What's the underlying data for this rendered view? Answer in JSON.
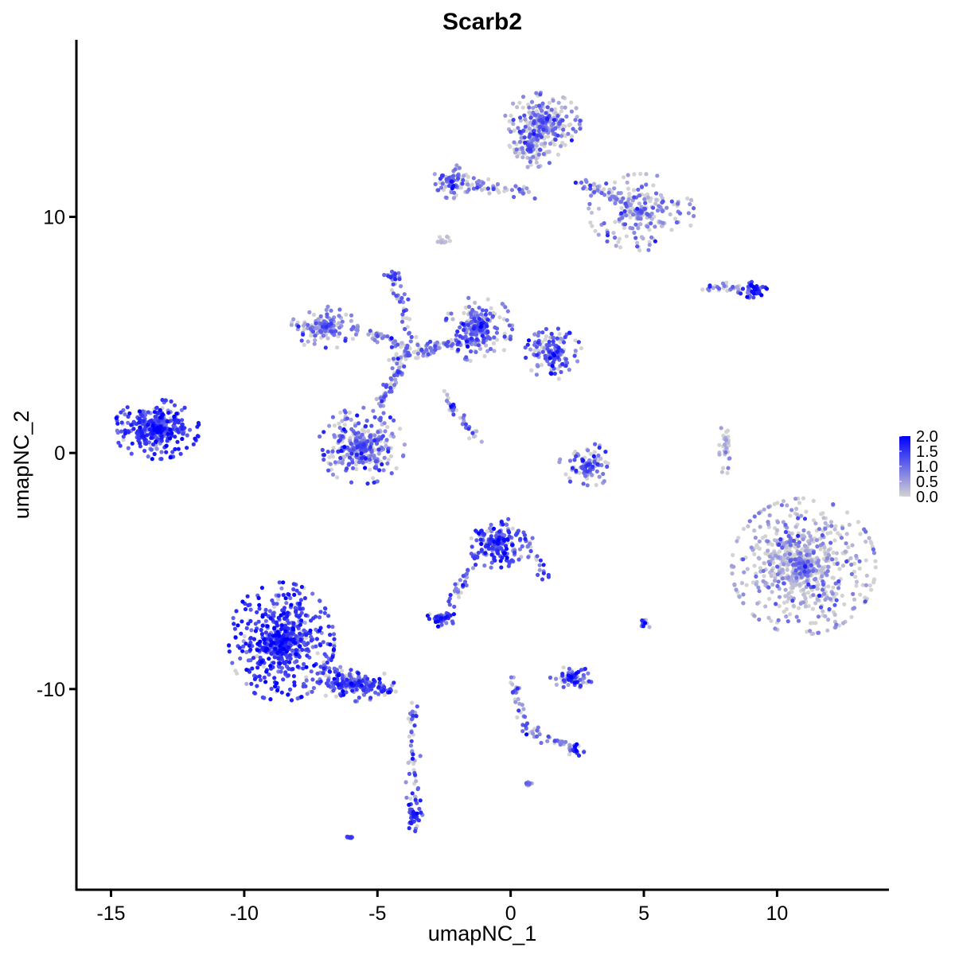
{
  "chart_data": {
    "type": "scatter",
    "title": "Scarb2",
    "xlabel": "umapNC_1",
    "ylabel": "umapNC_2",
    "xlim": [
      -16.3,
      14.2
    ],
    "ylim": [
      -18.5,
      17.5
    ],
    "x_ticks": [
      {
        "value": -15,
        "label": "-15"
      },
      {
        "value": -10,
        "label": "-10"
      },
      {
        "value": -5,
        "label": "-5"
      },
      {
        "value": 0,
        "label": "0"
      },
      {
        "value": 5,
        "label": "5"
      },
      {
        "value": 10,
        "label": "10"
      }
    ],
    "y_ticks": [
      {
        "value": -10,
        "label": "-10"
      },
      {
        "value": 0,
        "label": "0"
      },
      {
        "value": 10,
        "label": "10"
      }
    ],
    "grid": false,
    "legend": {
      "placement": "right",
      "type": "colorbar",
      "min": 0.0,
      "max": 2.0,
      "low_color": "#d3d3d3",
      "high_color": "#0000ff",
      "labels": [
        "2.0",
        "1.5",
        "1.0",
        "0.5",
        "0.0"
      ]
    },
    "colors": {
      "low": "#d3d3d3",
      "high": "#0000ff"
    },
    "clusters": [
      {
        "id": "c1",
        "center": [
          -13.3,
          1.0
        ],
        "spread": [
          0.9,
          0.7
        ],
        "n": 420,
        "mean_expr": 1.35
      },
      {
        "id": "c2",
        "center": [
          -8.6,
          -8.0
        ],
        "spread": [
          1.1,
          1.4
        ],
        "n": 650,
        "mean_expr": 1.4
      },
      {
        "id": "c3",
        "center": [
          -6.0,
          -9.8
        ],
        "spread": [
          0.9,
          0.4
        ],
        "n": 140,
        "mean_expr": 1.25
      },
      {
        "id": "c4",
        "center": [
          -5.6,
          0.3
        ],
        "spread": [
          0.9,
          0.9
        ],
        "n": 360,
        "mean_expr": 0.95
      },
      {
        "id": "c5",
        "center": [
          -7.0,
          5.3
        ],
        "spread": [
          0.7,
          0.5
        ],
        "n": 170,
        "mean_expr": 0.8
      },
      {
        "id": "c6",
        "center": [
          -1.2,
          5.3
        ],
        "spread": [
          0.7,
          0.8
        ],
        "n": 230,
        "mean_expr": 1.0
      },
      {
        "id": "c7",
        "center": [
          1.6,
          4.2
        ],
        "spread": [
          0.6,
          0.6
        ],
        "n": 170,
        "mean_expr": 1.05
      },
      {
        "id": "c8",
        "center": [
          1.2,
          14.0
        ],
        "spread": [
          0.8,
          0.7
        ],
        "n": 250,
        "mean_expr": 0.8
      },
      {
        "id": "c9",
        "center": [
          4.9,
          10.2
        ],
        "spread": [
          1.1,
          0.9
        ],
        "n": 240,
        "mean_expr": 0.7
      },
      {
        "id": "c10",
        "center": [
          -2.2,
          11.5
        ],
        "spread": [
          0.4,
          0.4
        ],
        "n": 80,
        "mean_expr": 0.9
      },
      {
        "id": "c11",
        "center": [
          0.8,
          13.0
        ],
        "spread": [
          0.6,
          0.5
        ],
        "n": 120,
        "mean_expr": 0.7
      },
      {
        "id": "c12",
        "center": [
          11.0,
          -4.8
        ],
        "spread": [
          1.5,
          1.6
        ],
        "n": 850,
        "mean_expr": 0.5
      },
      {
        "id": "c13",
        "center": [
          -0.5,
          -3.8
        ],
        "spread": [
          0.6,
          0.6
        ],
        "n": 220,
        "mean_expr": 1.25
      },
      {
        "id": "c14",
        "center": [
          -2.6,
          -7.0
        ],
        "spread": [
          0.3,
          0.2
        ],
        "n": 60,
        "mean_expr": 1.3
      },
      {
        "id": "c15",
        "center": [
          2.3,
          -9.5
        ],
        "spread": [
          0.45,
          0.25
        ],
        "n": 90,
        "mean_expr": 1.15
      },
      {
        "id": "c16",
        "center": [
          2.9,
          -0.5
        ],
        "spread": [
          0.6,
          0.5
        ],
        "n": 110,
        "mean_expr": 0.9
      },
      {
        "id": "c17",
        "center": [
          9.2,
          6.9
        ],
        "spread": [
          0.3,
          0.2
        ],
        "n": 50,
        "mean_expr": 1.5
      },
      {
        "id": "c18",
        "center": [
          -3.6,
          -15.3
        ],
        "spread": [
          0.2,
          0.4
        ],
        "n": 55,
        "mean_expr": 1.3
      },
      {
        "id": "c19",
        "center": [
          2.4,
          -12.6
        ],
        "spread": [
          0.2,
          0.15
        ],
        "n": 25,
        "mean_expr": 1.2
      },
      {
        "id": "c20",
        "center": [
          5.0,
          -7.2
        ],
        "spread": [
          0.15,
          0.15
        ],
        "n": 20,
        "mean_expr": 1.0
      },
      {
        "id": "c21",
        "center": [
          -6.0,
          -16.3
        ],
        "spread": [
          0.1,
          0.08
        ],
        "n": 10,
        "mean_expr": 1.2
      },
      {
        "id": "c22",
        "center": [
          8.1,
          0.2
        ],
        "spread": [
          0.15,
          0.7
        ],
        "n": 40,
        "mean_expr": 0.3
      },
      {
        "id": "c23",
        "center": [
          -2.6,
          9.0
        ],
        "spread": [
          0.2,
          0.2
        ],
        "n": 12,
        "mean_expr": 0.2
      },
      {
        "id": "c24",
        "center": [
          0.7,
          -14.0
        ],
        "spread": [
          0.1,
          0.08
        ],
        "n": 8,
        "mean_expr": 1.0
      },
      {
        "id": "c25",
        "center": [
          -4.4,
          7.5
        ],
        "spread": [
          0.15,
          0.15
        ],
        "n": 15,
        "mean_expr": 1.2
      }
    ],
    "bridges": [
      {
        "from": [
          -4.5,
          4.0
        ],
        "to": [
          -1.5,
          4.8
        ],
        "n": 90,
        "mean_expr": 0.85
      },
      {
        "from": [
          -5.0,
          2.0
        ],
        "to": [
          -4.0,
          3.8
        ],
        "n": 60,
        "mean_expr": 0.85
      },
      {
        "from": [
          -4.4,
          7.5
        ],
        "to": [
          -3.5,
          4.0
        ],
        "n": 40,
        "mean_expr": 0.9
      },
      {
        "from": [
          -2.6,
          2.5
        ],
        "to": [
          -1.2,
          0.6
        ],
        "n": 35,
        "mean_expr": 0.9
      },
      {
        "from": [
          -5.2,
          5.0
        ],
        "to": [
          -3.8,
          4.5
        ],
        "n": 40,
        "mean_expr": 0.7
      },
      {
        "from": [
          -2.0,
          11.5
        ],
        "to": [
          0.8,
          11.0
        ],
        "n": 60,
        "mean_expr": 0.7
      },
      {
        "from": [
          2.5,
          11.5
        ],
        "to": [
          4.5,
          10.5
        ],
        "n": 50,
        "mean_expr": 0.7
      },
      {
        "from": [
          -1.2,
          -4.3
        ],
        "to": [
          -2.5,
          -6.8
        ],
        "n": 35,
        "mean_expr": 1.1
      },
      {
        "from": [
          -3.7,
          -10.5
        ],
        "to": [
          -3.6,
          -14.8
        ],
        "n": 45,
        "mean_expr": 1.1
      },
      {
        "from": [
          -7.2,
          -9.0
        ],
        "to": [
          -4.2,
          -10.2
        ],
        "n": 80,
        "mean_expr": 1.2
      },
      {
        "from": [
          0.0,
          -9.4
        ],
        "to": [
          0.6,
          -11.7
        ],
        "n": 30,
        "mean_expr": 0.9
      },
      {
        "from": [
          0.6,
          -11.7
        ],
        "to": [
          2.4,
          -12.5
        ],
        "n": 30,
        "mean_expr": 0.9
      },
      {
        "from": [
          7.3,
          7.0
        ],
        "to": [
          8.9,
          6.9
        ],
        "n": 30,
        "mean_expr": 0.9
      },
      {
        "from": [
          0.5,
          -3.6
        ],
        "to": [
          1.3,
          -5.3
        ],
        "n": 25,
        "mean_expr": 1.1
      }
    ]
  }
}
